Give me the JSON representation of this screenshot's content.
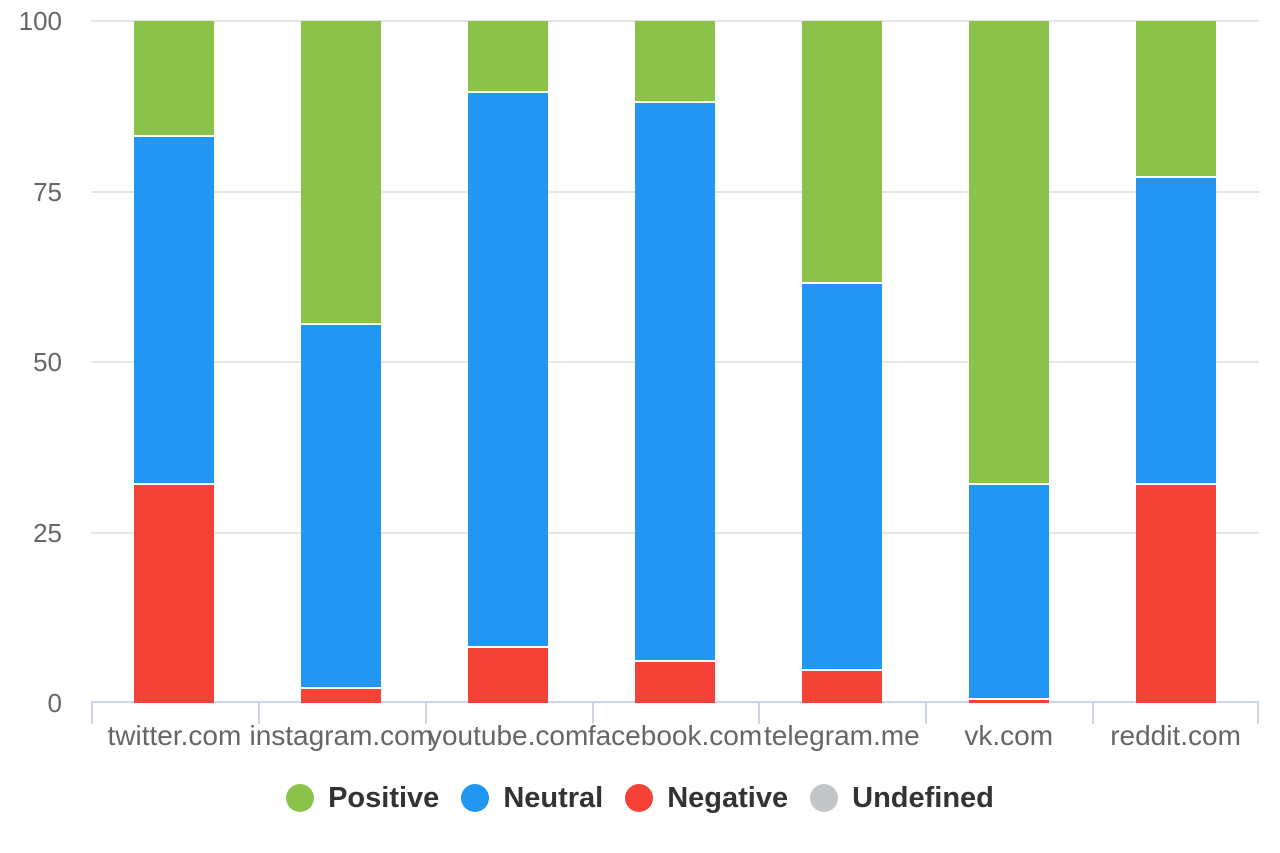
{
  "chart_data": {
    "type": "bar",
    "stacked": true,
    "title": "",
    "xlabel": "",
    "ylabel": "",
    "ylim": [
      0,
      100
    ],
    "yticks": [
      0,
      25,
      50,
      75,
      100
    ],
    "grid": true,
    "legend_position": "bottom",
    "categories": [
      "twitter.com",
      "instagram.com",
      "youtube.com",
      "facebook.com",
      "telegram.me",
      "vk.com",
      "reddit.com"
    ],
    "series": [
      {
        "name": "Positive",
        "color": "#8BC34A",
        "values": [
          17,
          44.5,
          10.5,
          12,
          38.5,
          68,
          23
        ]
      },
      {
        "name": "Neutral",
        "color": "#2196F3",
        "values": [
          51,
          53.5,
          81.5,
          82,
          56.8,
          31.5,
          45
        ]
      },
      {
        "name": "Negative",
        "color": "#F44336",
        "values": [
          32,
          2,
          8,
          6,
          4.7,
          0.5,
          32
        ]
      },
      {
        "name": "Undefined",
        "color": "#C2C6C9",
        "values": [
          0,
          0,
          0,
          0,
          0,
          0,
          0
        ]
      }
    ],
    "style_colors": {
      "gridline": "#E6E6E6",
      "axis_line": "#CCD6EB",
      "axis_label_text": "#666666",
      "legend_text": "#333333",
      "background": "#FFFFFF"
    }
  }
}
